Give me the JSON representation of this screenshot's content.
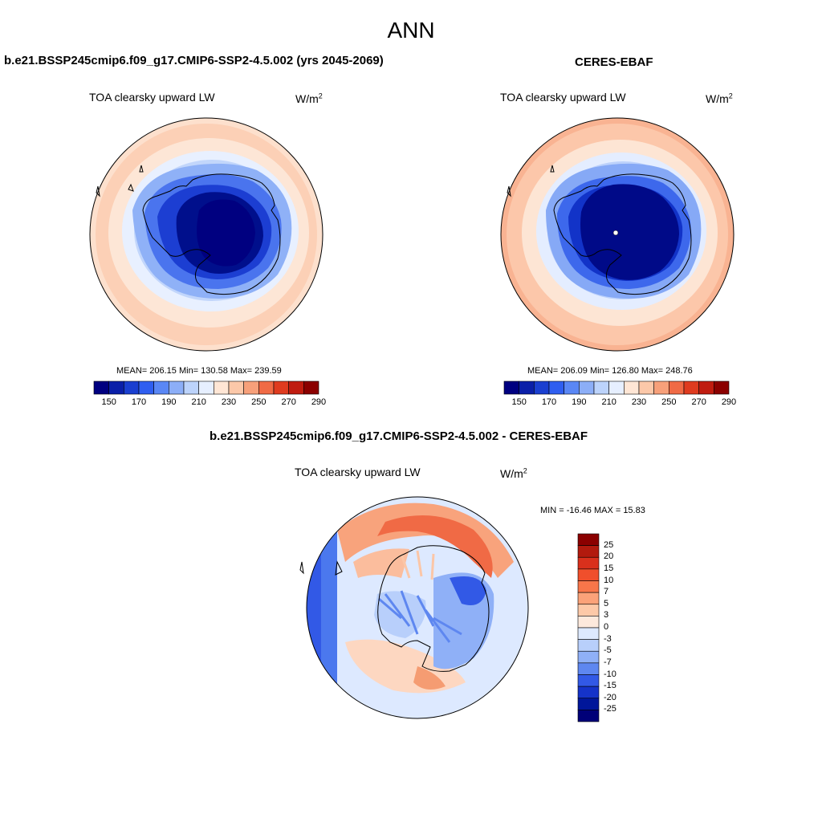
{
  "main_title": "ANN",
  "panels": [
    {
      "title": "b.e21.BSSP245cmip6.f09_g17.CMIP6-SSP2-4.5.002 (yrs 2045-2069)",
      "variable": "TOA clearsky upward LW",
      "units_base": "W/m",
      "units_exp": "2",
      "stats": "MEAN= 206.15  Min= 130.58  Max= 239.59",
      "colorbar_ticks": [
        "150",
        "170",
        "190",
        "210",
        "230",
        "250",
        "270",
        "290"
      ]
    },
    {
      "title": "CERES-EBAF",
      "variable": "TOA clearsky upward LW",
      "units_base": "W/m",
      "units_exp": "2",
      "stats": "MEAN= 206.09  Min= 126.80  Max= 248.76",
      "colorbar_ticks": [
        "150",
        "170",
        "190",
        "210",
        "230",
        "250",
        "270",
        "290"
      ]
    },
    {
      "title": "b.e21.BSSP245cmip6.f09_g17.CMIP6-SSP2-4.5.002 - CERES-EBAF",
      "variable": "TOA clearsky upward LW",
      "units_base": "W/m",
      "units_exp": "2",
      "stats": "MIN = -16.46 MAX =  15.83",
      "colorbar_ticks": [
        "25",
        "20",
        "15",
        "10",
        "7",
        "5",
        "3",
        "0",
        "-3",
        "-5",
        "-7",
        "-10",
        "-15",
        "-20",
        "-25"
      ]
    }
  ],
  "colors": {
    "abs_scale": [
      "#000080",
      "#0a1fa8",
      "#1a3fd0",
      "#2f5ef0",
      "#5a87f5",
      "#8caef7",
      "#bcd3fb",
      "#e6efff",
      "#ffe6d5",
      "#fcc8a9",
      "#f7a07a",
      "#f06a45",
      "#df3b1f",
      "#c01c10",
      "#8b0000"
    ],
    "diff_scale": [
      "#8b0000",
      "#b21a0e",
      "#d9301c",
      "#f04f2c",
      "#f8764a",
      "#fba279",
      "#fdc9a8",
      "#fde9dc",
      "#dde9ff",
      "#b8cffb",
      "#8fb0f7",
      "#5e87f0",
      "#3259e6",
      "#1533c9",
      "#00169a",
      "#000078"
    ]
  }
}
